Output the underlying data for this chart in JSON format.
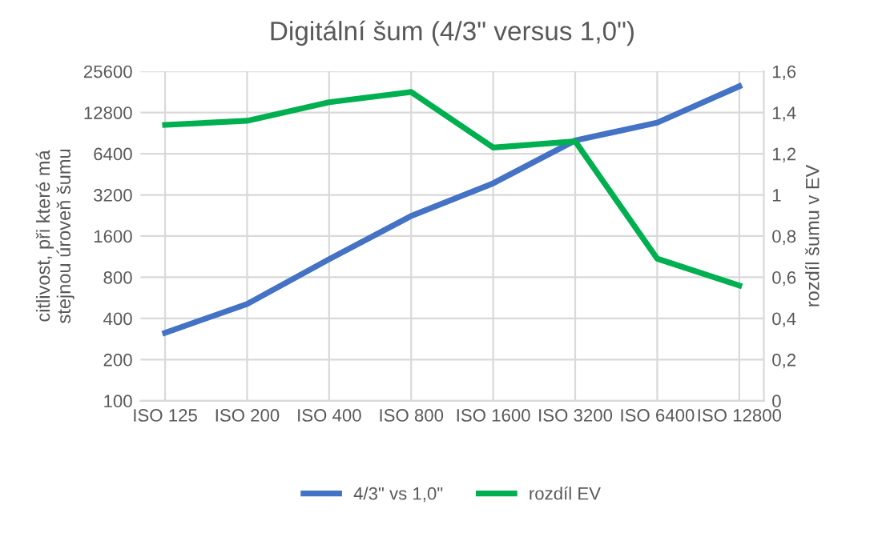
{
  "chart_data": {
    "type": "line",
    "title": "Digitální šum (4/3\" versus 1,0\")",
    "categories": [
      "ISO 125",
      "ISO 200",
      "ISO 400",
      "ISO 800",
      "ISO 1600",
      "ISO 3200",
      "ISO 6400",
      "ISO 12800"
    ],
    "series": [
      {
        "name": "4/3\" vs 1,0\"",
        "color": "#4472c4",
        "values": [
          314,
          510,
          1085,
          2245,
          3890,
          8000,
          10800,
          19900
        ]
      },
      {
        "name": "rozdíl EV",
        "color": "#00b050",
        "axis": "y2",
        "values": [
          1.34,
          1.36,
          1.45,
          1.5,
          1.23,
          1.26,
          0.69,
          0.56
        ]
      }
    ],
    "ylabel": "citlivost, při které má\nstejnou úroveň šumu",
    "y2label": "rozdíl šumu v EV",
    "log": "y",
    "ylim": [
      100,
      25600
    ],
    "yticks": [
      100,
      200,
      400,
      800,
      1600,
      3200,
      6400,
      12800,
      25600
    ],
    "y2lim": [
      0,
      1.6
    ],
    "y2ticks": [
      0,
      {
        "value": 0.2,
        "label": "0,2"
      },
      {
        "value": 0.4,
        "label": "0,4"
      },
      {
        "value": 0.6,
        "label": "0,6"
      },
      {
        "value": 0.8,
        "label": "0,8"
      },
      1,
      {
        "value": 1.2,
        "label": "1,2"
      },
      {
        "value": 1.4,
        "label": "1,4"
      },
      {
        "value": 1.6,
        "label": "1,6"
      }
    ],
    "grid": true,
    "legend": "bottom",
    "marker": "none",
    "line_style": "solid"
  }
}
